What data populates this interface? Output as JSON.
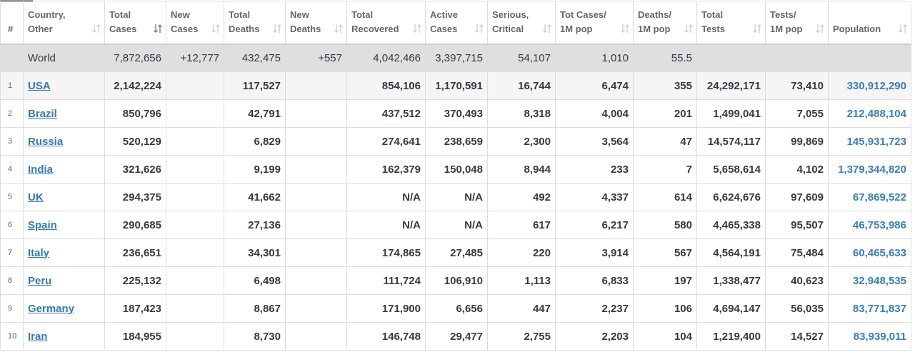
{
  "table": {
    "headers": [
      [
        "#"
      ],
      [
        "Country,",
        "Other"
      ],
      [
        "Total",
        "Cases"
      ],
      [
        "New",
        "Cases"
      ],
      [
        "Total",
        "Deaths"
      ],
      [
        "New",
        "Deaths"
      ],
      [
        "Total",
        "Recovered"
      ],
      [
        "Active",
        "Cases"
      ],
      [
        "Serious,",
        "Critical"
      ],
      [
        "Tot Cases/",
        "1M pop"
      ],
      [
        "Deaths/",
        "1M pop"
      ],
      [
        "Total",
        "Tests"
      ],
      [
        "Tests/",
        "1M pop"
      ],
      [
        "Population"
      ]
    ],
    "world": [
      null,
      "World",
      "7,872,656",
      "+12,777",
      "432,475",
      "+557",
      "4,042,466",
      "3,397,715",
      "54,107",
      "1,010",
      "55.5",
      null,
      null,
      null
    ],
    "rows": [
      [
        1,
        "USA",
        "2,142,224",
        null,
        "117,527",
        null,
        "854,106",
        "1,170,591",
        "16,744",
        "6,474",
        "355",
        "24,292,171",
        "73,410",
        "330,912,290"
      ],
      [
        2,
        "Brazil",
        "850,796",
        null,
        "42,791",
        null,
        "437,512",
        "370,493",
        "8,318",
        "4,004",
        "201",
        "1,499,041",
        "7,055",
        "212,488,104"
      ],
      [
        3,
        "Russia",
        "520,129",
        null,
        "6,829",
        null,
        "274,641",
        "238,659",
        "2,300",
        "3,564",
        "47",
        "14,574,117",
        "99,869",
        "145,931,723"
      ],
      [
        4,
        "India",
        "321,626",
        null,
        "9,199",
        null,
        "162,379",
        "150,048",
        "8,944",
        "233",
        "7",
        "5,658,614",
        "4,102",
        "1,379,344,820"
      ],
      [
        5,
        "UK",
        "294,375",
        null,
        "41,662",
        null,
        "N/A",
        "N/A",
        "492",
        "4,337",
        "614",
        "6,624,676",
        "97,609",
        "67,869,522"
      ],
      [
        6,
        "Spain",
        "290,685",
        null,
        "27,136",
        null,
        "N/A",
        "N/A",
        "617",
        "6,217",
        "580",
        "4,465,338",
        "95,507",
        "46,753,986"
      ],
      [
        7,
        "Italy",
        "236,651",
        null,
        "34,301",
        null,
        "174,865",
        "27,485",
        "220",
        "3,914",
        "567",
        "4,564,191",
        "75,484",
        "60,465,633"
      ],
      [
        8,
        "Peru",
        "225,132",
        null,
        "6,498",
        null,
        "111,724",
        "106,910",
        "1,113",
        "6,833",
        "197",
        "1,338,477",
        "40,623",
        "32,948,535"
      ],
      [
        9,
        "Germany",
        "187,423",
        null,
        "8,867",
        null,
        "171,900",
        "6,656",
        "447",
        "2,237",
        "106",
        "4,694,147",
        "56,035",
        "83,771,837"
      ],
      [
        10,
        "Iran",
        "184,955",
        null,
        "8,730",
        null,
        "146,748",
        "29,477",
        "2,755",
        "2,203",
        "104",
        "1,219,400",
        "14,527",
        "83,939,011"
      ]
    ]
  }
}
